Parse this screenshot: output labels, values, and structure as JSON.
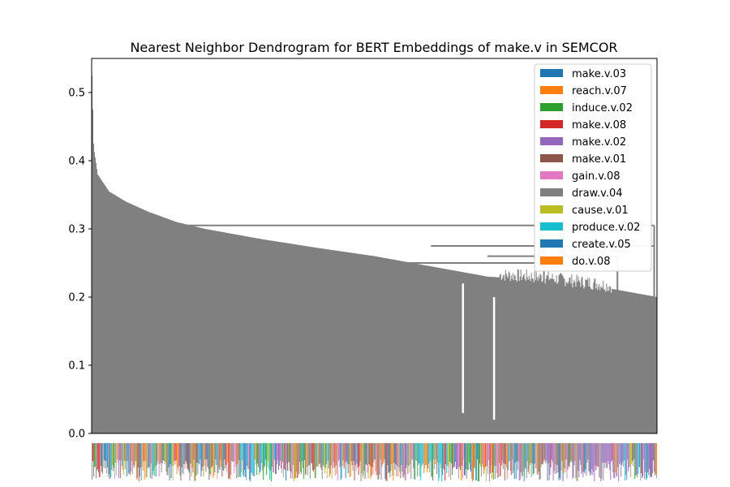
{
  "chart_data": {
    "type": "dendrogram",
    "title": "Nearest Neighbor Dendrogram for BERT Embeddings of make.v in SEMCOR",
    "xlabel": "",
    "ylabel": "",
    "ylim": [
      0,
      0.55
    ],
    "yticks": [
      0.0,
      0.1,
      0.2,
      0.3,
      0.4,
      0.5
    ],
    "ytick_labels": [
      "0.0",
      "0.1",
      "0.2",
      "0.3",
      "0.4",
      "0.5"
    ],
    "grid": false,
    "legend_position": "top-right",
    "link_color": "#808080",
    "legend": [
      {
        "label": "make.v.03",
        "color": "#1f77b4"
      },
      {
        "label": "reach.v.07",
        "color": "#ff7f0e"
      },
      {
        "label": "induce.v.02",
        "color": "#2ca02c"
      },
      {
        "label": "make.v.08",
        "color": "#d62728"
      },
      {
        "label": "make.v.02",
        "color": "#9467bd"
      },
      {
        "label": "make.v.01",
        "color": "#8c564b"
      },
      {
        "label": "gain.v.08",
        "color": "#e377c2"
      },
      {
        "label": "draw.v.04",
        "color": "#7f7f7f"
      },
      {
        "label": "cause.v.01",
        "color": "#bcbd22"
      },
      {
        "label": "produce.v.02",
        "color": "#17becf"
      },
      {
        "label": "create.v.05",
        "color": "#1f77b4"
      },
      {
        "label": "do.v.08",
        "color": "#ff7f0e"
      }
    ],
    "merge_heights_profile": [
      {
        "x": 0.0,
        "y": 0.525
      },
      {
        "x": 0.003,
        "y": 0.42
      },
      {
        "x": 0.01,
        "y": 0.38
      },
      {
        "x": 0.03,
        "y": 0.355
      },
      {
        "x": 0.06,
        "y": 0.34
      },
      {
        "x": 0.1,
        "y": 0.325
      },
      {
        "x": 0.15,
        "y": 0.31
      },
      {
        "x": 0.2,
        "y": 0.3
      },
      {
        "x": 0.3,
        "y": 0.285
      },
      {
        "x": 0.4,
        "y": 0.272
      },
      {
        "x": 0.5,
        "y": 0.26
      },
      {
        "x": 0.6,
        "y": 0.245
      },
      {
        "x": 0.7,
        "y": 0.23
      },
      {
        "x": 0.8,
        "y": 0.225
      },
      {
        "x": 0.9,
        "y": 0.215
      },
      {
        "x": 1.0,
        "y": 0.2
      }
    ],
    "upper_links": [
      {
        "y": 0.305,
        "x_start": 0.15,
        "x_end": 0.995
      },
      {
        "y": 0.275,
        "x_start": 0.6,
        "x_end": 0.995
      },
      {
        "y": 0.26,
        "x_start": 0.7,
        "x_end": 0.93
      },
      {
        "y": 0.25,
        "x_start": 0.5,
        "x_end": 0.8
      }
    ]
  }
}
